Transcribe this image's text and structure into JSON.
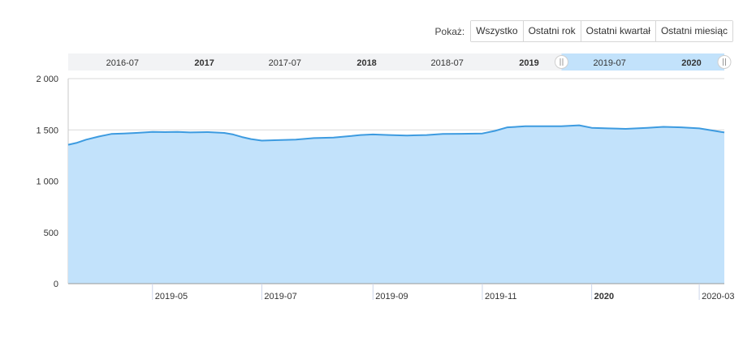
{
  "range_selector": {
    "label": "Pokaż:",
    "buttons": [
      "Wszystko",
      "Ostatni rok",
      "Ostatni kwartał",
      "Ostatni miesiąc"
    ]
  },
  "navigator": {
    "labels": [
      {
        "text": "2016-07",
        "bold": false
      },
      {
        "text": "2017",
        "bold": true
      },
      {
        "text": "2017-07",
        "bold": false
      },
      {
        "text": "2018",
        "bold": true
      },
      {
        "text": "2018-07",
        "bold": false
      },
      {
        "text": "2019",
        "bold": true
      },
      {
        "text": "2019-07",
        "bold": false
      },
      {
        "text": "2020",
        "bold": true
      }
    ],
    "selected_range": [
      "2019-03-15",
      "2020-03-15"
    ]
  },
  "colors": {
    "line": "#3d9be0",
    "fill": "#c2e2fb",
    "selection": "#c2e2fb",
    "navigator_bg": "#f2f3f5",
    "grid": "#d9d9d9"
  },
  "chart_data": {
    "type": "area",
    "title": "",
    "xlabel": "",
    "ylabel": "",
    "ylim": [
      0,
      2000
    ],
    "y_ticks": [
      "0",
      "500",
      "1 000",
      "1 500",
      "2 000"
    ],
    "x_range": [
      "2019-03-15",
      "2020-03-15"
    ],
    "x_ticks": [
      {
        "label": "2019-05",
        "date": "2019-05-01",
        "bold": false
      },
      {
        "label": "2019-07",
        "date": "2019-07-01",
        "bold": false
      },
      {
        "label": "2019-09",
        "date": "2019-09-01",
        "bold": false
      },
      {
        "label": "2019-11",
        "date": "2019-11-01",
        "bold": false
      },
      {
        "label": "2020",
        "date": "2020-01-01",
        "bold": true
      },
      {
        "label": "2020-03",
        "date": "2020-03-01",
        "bold": false
      }
    ],
    "series": [
      {
        "values": [
          [
            "2019-03-15",
            1355
          ],
          [
            "2019-03-20",
            1375
          ],
          [
            "2019-03-25",
            1405
          ],
          [
            "2019-04-01",
            1435
          ],
          [
            "2019-04-08",
            1460
          ],
          [
            "2019-04-15",
            1465
          ],
          [
            "2019-04-22",
            1470
          ],
          [
            "2019-05-01",
            1480
          ],
          [
            "2019-05-08",
            1478
          ],
          [
            "2019-05-15",
            1480
          ],
          [
            "2019-05-22",
            1475
          ],
          [
            "2019-06-01",
            1478
          ],
          [
            "2019-06-10",
            1470
          ],
          [
            "2019-06-15",
            1455
          ],
          [
            "2019-06-20",
            1430
          ],
          [
            "2019-06-25",
            1410
          ],
          [
            "2019-07-01",
            1395
          ],
          [
            "2019-07-10",
            1400
          ],
          [
            "2019-07-20",
            1405
          ],
          [
            "2019-07-30",
            1420
          ],
          [
            "2019-08-10",
            1425
          ],
          [
            "2019-08-20",
            1440
          ],
          [
            "2019-08-25",
            1450
          ],
          [
            "2019-09-01",
            1455
          ],
          [
            "2019-09-10",
            1450
          ],
          [
            "2019-09-20",
            1445
          ],
          [
            "2019-10-01",
            1450
          ],
          [
            "2019-10-10",
            1460
          ],
          [
            "2019-10-20",
            1462
          ],
          [
            "2019-11-01",
            1465
          ],
          [
            "2019-11-08",
            1490
          ],
          [
            "2019-11-15",
            1525
          ],
          [
            "2019-11-25",
            1535
          ],
          [
            "2019-12-05",
            1535
          ],
          [
            "2019-12-15",
            1535
          ],
          [
            "2019-12-25",
            1545
          ],
          [
            "2020-01-01",
            1520
          ],
          [
            "2020-01-10",
            1515
          ],
          [
            "2020-01-20",
            1510
          ],
          [
            "2020-02-01",
            1520
          ],
          [
            "2020-02-10",
            1530
          ],
          [
            "2020-02-20",
            1525
          ],
          [
            "2020-03-01",
            1515
          ],
          [
            "2020-03-08",
            1495
          ],
          [
            "2020-03-15",
            1475
          ]
        ]
      }
    ]
  }
}
